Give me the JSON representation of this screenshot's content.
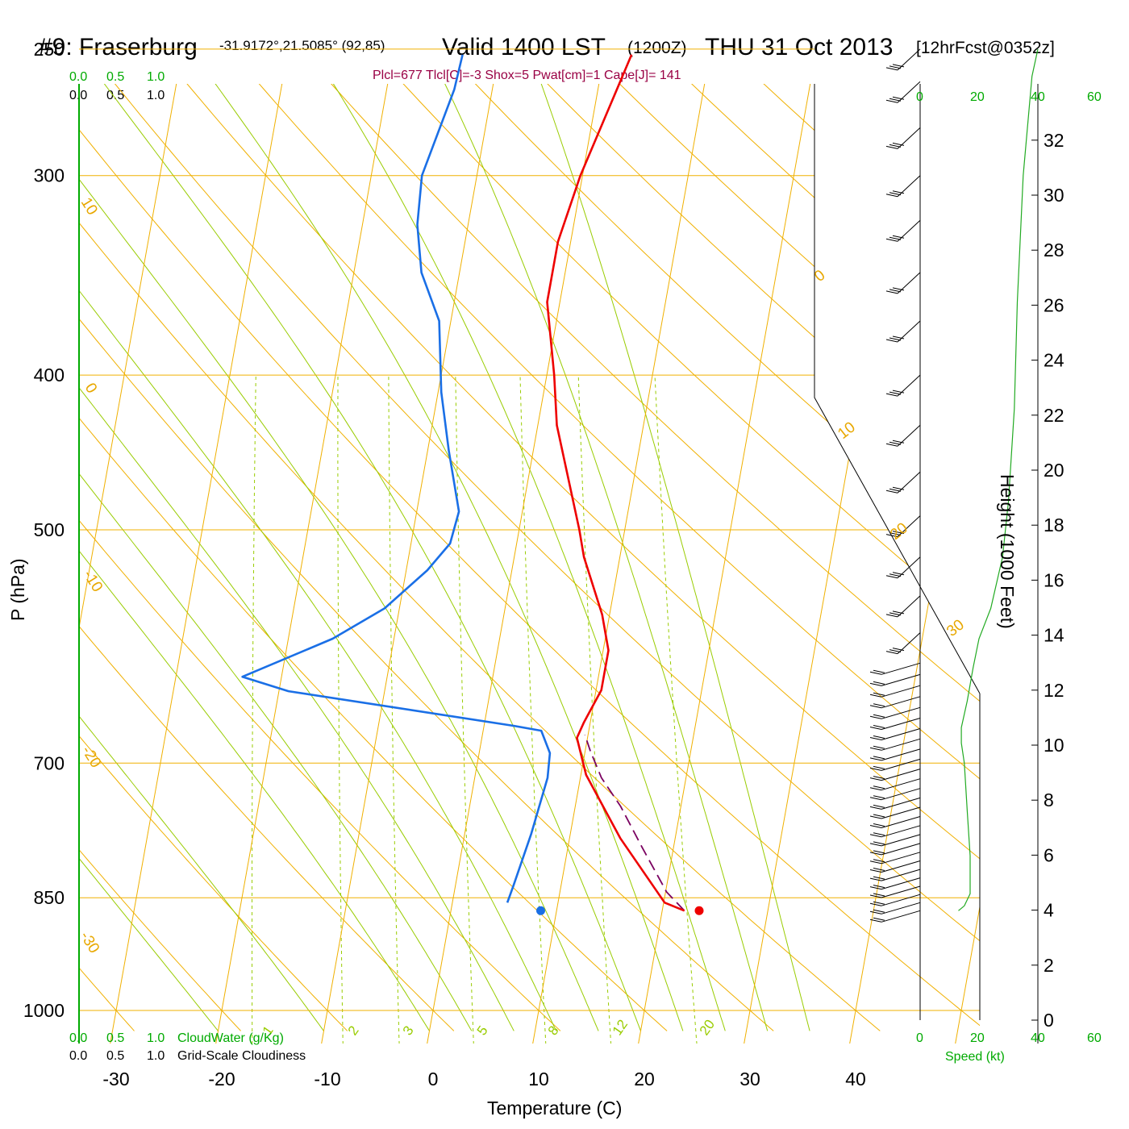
{
  "header": {
    "station": "#9: Fraserburg",
    "coords": "-31.9172°,21.5085° (92,85)",
    "valid": "Valid 1400 LST",
    "zulu": "(1200Z)",
    "date": "THU 31 Oct 2013",
    "forecast": "[12hrFcst@0352z]",
    "indices": "Plcl=677 Tlcl[C]=-3 Shox=5 Pwat[cm]=1 Cape[J]= 141"
  },
  "colors": {
    "temperature": "#ee0000",
    "dewpoint": "#1a6fe6",
    "parcel": "#7a0060",
    "isotherm": "#f0b000",
    "dry_adiabat": "#f0b000",
    "moist_adiabat": "#99cc00",
    "mixing_ratio": "#99cc00",
    "green_scale": "#00aa00",
    "indices_text": "#990044"
  },
  "labels": {
    "ylabel": "P (hPa)",
    "xlabel": "Temperature (C)",
    "height_label": "Height (1000 Feet)",
    "cloudwater": "CloudWater (g/Kg)",
    "cloudiness": "Grid-Scale Cloudiness",
    "speed": "Speed (kt)",
    "scale_top_green": [
      "0.0",
      "0.5",
      "1.0"
    ],
    "scale_top_black": [
      "0.0",
      "0.5",
      "1.0"
    ],
    "scale_bottom_green": [
      "0.0",
      "0.5",
      "1.0"
    ],
    "scale_bottom_black": [
      "0.0",
      "0.5",
      "1.0"
    ],
    "speed_ticks": [
      "0",
      "20",
      "40",
      "60"
    ]
  },
  "chart_data": {
    "type": "line",
    "title": "#9: Fraserburg Valid 1400 LST (1200Z) THU 31 Oct 2013",
    "xlabel": "Temperature (C)",
    "ylabel": "P (hPa)",
    "xlim": [
      -34,
      41
    ],
    "ylim": [
      1000,
      250
    ],
    "yscale": "log",
    "x_ticks": [
      "-30",
      "-20",
      "-10",
      "0",
      "10",
      "20",
      "30",
      "40"
    ],
    "pressure_levels": [
      "250",
      "300",
      "400",
      "500",
      "700",
      "850",
      "1000"
    ],
    "height_ticks": [
      "0",
      "2",
      "4",
      "6",
      "8",
      "10",
      "12",
      "14",
      "16",
      "18",
      "20",
      "22",
      "24",
      "26",
      "28",
      "30",
      "32"
    ],
    "isotherm_labels": [
      "10",
      "0",
      "-10",
      "-20",
      "-30",
      "0",
      "10",
      "20",
      "30"
    ],
    "mixing_ratio_labels": [
      "1",
      "2",
      "3",
      "5",
      "8",
      "12",
      "20"
    ],
    "series": [
      {
        "name": "Temperature",
        "points": [
          [
            22.1,
            866
          ],
          [
            20.1,
            856
          ],
          [
            14.8,
            780
          ],
          [
            10.5,
            712
          ],
          [
            9.0,
            675
          ],
          [
            9.4,
            660
          ],
          [
            10.5,
            630
          ],
          [
            10.5,
            595
          ],
          [
            9.3,
            565
          ],
          [
            6.6,
            520
          ],
          [
            5.7,
            500
          ],
          [
            1.8,
            430
          ],
          [
            0.7,
            400
          ],
          [
            -1.2,
            360
          ],
          [
            -1.2,
            330
          ],
          [
            -0.2,
            300
          ],
          [
            1.2,
            275
          ],
          [
            2.6,
            252
          ]
        ]
      },
      {
        "name": "Dewpoint",
        "points": [
          [
            5.2,
            856
          ],
          [
            5.5,
            835
          ],
          [
            6.3,
            775
          ],
          [
            6.9,
            715
          ],
          [
            6.7,
            690
          ],
          [
            5.5,
            668
          ],
          [
            2.6,
            663
          ],
          [
            -19.1,
            631
          ],
          [
            -23.7,
            618
          ],
          [
            -15.8,
            585
          ],
          [
            -11.4,
            560
          ],
          [
            -8.0,
            530
          ],
          [
            -6.3,
            510
          ],
          [
            -6.0,
            487
          ],
          [
            -8.0,
            446
          ],
          [
            -9.7,
            410
          ],
          [
            -11.1,
            370
          ],
          [
            -13.6,
            345
          ],
          [
            -14.8,
            322
          ],
          [
            -15.2,
            300
          ],
          [
            -13.6,
            265
          ],
          [
            -13.4,
            252
          ]
        ]
      },
      {
        "name": "Parcel",
        "points": [
          [
            22.1,
            866
          ],
          [
            20.1,
            843
          ],
          [
            17.0,
            790
          ],
          [
            14.3,
            745
          ],
          [
            12.0,
            715
          ],
          [
            10.5,
            688
          ],
          [
            9.7,
            672
          ]
        ]
      }
    ],
    "surface_temperature": 23.5,
    "surface_dewpoint": 8.5,
    "surface_pressure": 866,
    "wind_speed_profile": [
      [
        13,
        866
      ],
      [
        15,
        860
      ],
      [
        17,
        845
      ],
      [
        17,
        800
      ],
      [
        16,
        750
      ],
      [
        15,
        700
      ],
      [
        14,
        680
      ],
      [
        14,
        665
      ],
      [
        16,
        640
      ],
      [
        18,
        610
      ],
      [
        20,
        585
      ],
      [
        24,
        560
      ],
      [
        28,
        520
      ],
      [
        30,
        480
      ],
      [
        32,
        420
      ],
      [
        33,
        360
      ],
      [
        35,
        300
      ],
      [
        38,
        260
      ],
      [
        40,
        250
      ]
    ]
  }
}
